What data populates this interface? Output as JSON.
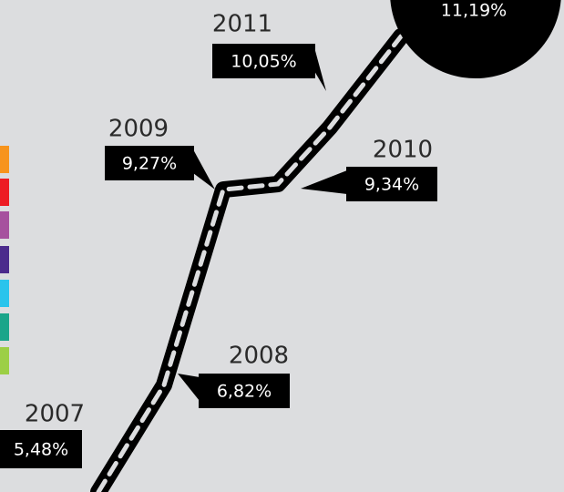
{
  "chart_data": {
    "type": "line",
    "categories": [
      "2007",
      "2008",
      "2009",
      "2010",
      "2011",
      null
    ],
    "values": [
      5.48,
      6.82,
      9.27,
      9.34,
      10.05,
      11.19
    ],
    "value_labels": [
      "5,48%",
      "6,82%",
      "9,27%",
      "9,34%",
      "10,05%",
      "11,19%"
    ],
    "color": "#000000"
  }
}
